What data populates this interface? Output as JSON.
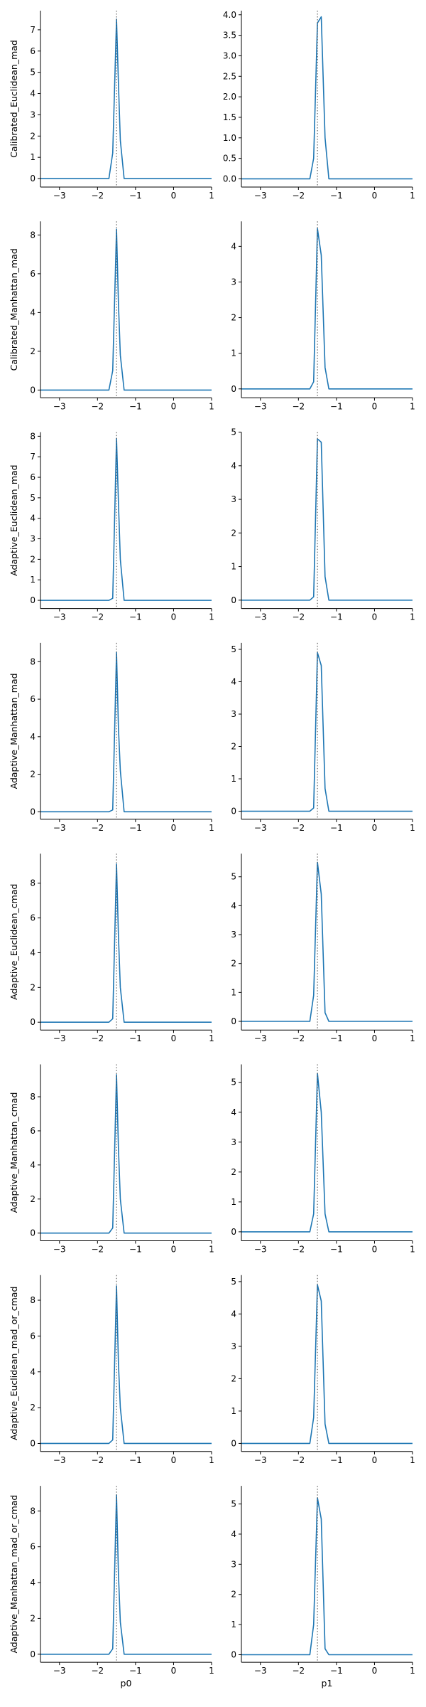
{
  "figure": {
    "line_color": "#1f77b4",
    "reference_line_color": "#555555",
    "reference_x": -1.5,
    "xlim": [
      -3.5,
      1.0
    ],
    "x_ticks": [
      -3,
      -2,
      -1,
      0,
      1
    ],
    "x_tick_labels": [
      "−3",
      "−2",
      "−1",
      "0",
      "1"
    ],
    "column_xlabels": [
      "p0",
      "p1"
    ]
  },
  "chart_data": [
    {
      "type": "line",
      "ylabel": "Calibrated_Euclidean_mad",
      "xlabel": "",
      "ylim": [
        -0.4,
        7.9
      ],
      "y_ticks": [
        0,
        1,
        2,
        3,
        4,
        5,
        6,
        7
      ],
      "y_tick_labels": [
        "0",
        "1",
        "2",
        "3",
        "4",
        "5",
        "6",
        "7"
      ],
      "x": [
        -3.5,
        -1.7,
        -1.6,
        -1.5,
        -1.45,
        -1.4,
        -1.3,
        1.0
      ],
      "values": [
        0,
        0,
        1.2,
        7.5,
        4.5,
        1.8,
        0,
        0
      ]
    },
    {
      "type": "line",
      "ylabel": "",
      "xlabel": "",
      "ylim": [
        -0.2,
        4.1
      ],
      "y_ticks": [
        0,
        0.5,
        1,
        1.5,
        2,
        2.5,
        3,
        3.5,
        4
      ],
      "y_tick_labels": [
        "0.0",
        "0.5",
        "1.0",
        "1.5",
        "2.0",
        "2.5",
        "3.0",
        "3.5",
        "4.0"
      ],
      "x": [
        -3.5,
        -1.7,
        -1.6,
        -1.5,
        -1.4,
        -1.3,
        -1.2,
        1.0
      ],
      "values": [
        0,
        0,
        0.5,
        3.8,
        3.95,
        1.0,
        0,
        0
      ]
    },
    {
      "type": "line",
      "ylabel": "Calibrated_Manhattan_mad",
      "xlabel": "",
      "ylim": [
        -0.4,
        8.7
      ],
      "y_ticks": [
        0,
        2,
        4,
        6,
        8
      ],
      "y_tick_labels": [
        "0",
        "2",
        "4",
        "6",
        "8"
      ],
      "x": [
        -3.5,
        -1.7,
        -1.6,
        -1.5,
        -1.45,
        -1.4,
        -1.3,
        1.0
      ],
      "values": [
        0,
        0,
        1.0,
        8.3,
        4.5,
        1.8,
        0,
        0
      ]
    },
    {
      "type": "line",
      "ylabel": "",
      "xlabel": "",
      "ylim": [
        -0.25,
        4.7
      ],
      "y_ticks": [
        0,
        1,
        2,
        3,
        4
      ],
      "y_tick_labels": [
        "0",
        "1",
        "2",
        "3",
        "4"
      ],
      "x": [
        -3.5,
        -1.7,
        -1.6,
        -1.5,
        -1.4,
        -1.3,
        -1.2,
        1.0
      ],
      "values": [
        0,
        0,
        0.2,
        4.5,
        3.75,
        0.6,
        0,
        0
      ]
    },
    {
      "type": "line",
      "ylabel": "Adaptive_Euclidean_mad",
      "xlabel": "",
      "ylim": [
        -0.4,
        8.2
      ],
      "y_ticks": [
        0,
        1,
        2,
        3,
        4,
        5,
        6,
        7,
        8
      ],
      "y_tick_labels": [
        "0",
        "1",
        "2",
        "3",
        "4",
        "5",
        "6",
        "7",
        "8"
      ],
      "x": [
        -3.5,
        -1.7,
        -1.6,
        -1.5,
        -1.45,
        -1.4,
        -1.3,
        1.0
      ],
      "values": [
        0,
        0,
        0.1,
        7.9,
        4.8,
        2.0,
        0,
        0
      ]
    },
    {
      "type": "line",
      "ylabel": "",
      "xlabel": "",
      "ylim": [
        -0.25,
        5.0
      ],
      "y_ticks": [
        0,
        1,
        2,
        3,
        4,
        5
      ],
      "y_tick_labels": [
        "0",
        "1",
        "2",
        "3",
        "4",
        "5"
      ],
      "x": [
        -3.5,
        -1.7,
        -1.6,
        -1.5,
        -1.4,
        -1.3,
        -1.2,
        1.0
      ],
      "values": [
        0,
        0,
        0.1,
        4.8,
        4.7,
        0.7,
        0,
        0
      ]
    },
    {
      "type": "line",
      "ylabel": "Adaptive_Manhattan_mad",
      "xlabel": "",
      "ylim": [
        -0.4,
        9.0
      ],
      "y_ticks": [
        0,
        2,
        4,
        6,
        8
      ],
      "y_tick_labels": [
        "0",
        "2",
        "4",
        "6",
        "8"
      ],
      "x": [
        -3.5,
        -1.7,
        -1.6,
        -1.5,
        -1.45,
        -1.4,
        -1.3,
        1.0
      ],
      "values": [
        0,
        0,
        0.1,
        8.5,
        4.5,
        2.2,
        0,
        0
      ]
    },
    {
      "type": "line",
      "ylabel": "",
      "xlabel": "",
      "ylim": [
        -0.25,
        5.2
      ],
      "y_ticks": [
        0,
        1,
        2,
        3,
        4,
        5
      ],
      "y_tick_labels": [
        "0",
        "1",
        "2",
        "3",
        "4",
        "5"
      ],
      "x": [
        -3.5,
        -1.7,
        -1.6,
        -1.5,
        -1.4,
        -1.3,
        -1.2,
        1.0
      ],
      "values": [
        0,
        0,
        0.1,
        4.9,
        4.5,
        0.7,
        0,
        0
      ]
    },
    {
      "type": "line",
      "ylabel": "Adaptive_Euclidean_cmad",
      "xlabel": "",
      "ylim": [
        -0.45,
        9.7
      ],
      "y_ticks": [
        0,
        2,
        4,
        6,
        8
      ],
      "y_tick_labels": [
        "0",
        "2",
        "4",
        "6",
        "8"
      ],
      "x": [
        -3.5,
        -1.7,
        -1.6,
        -1.5,
        -1.45,
        -1.4,
        -1.3,
        1.0
      ],
      "values": [
        0,
        0,
        0.2,
        9.1,
        5.0,
        2.0,
        0,
        0
      ]
    },
    {
      "type": "line",
      "ylabel": "",
      "xlabel": "",
      "ylim": [
        -0.3,
        5.8
      ],
      "y_ticks": [
        0,
        1,
        2,
        3,
        4,
        5
      ],
      "y_tick_labels": [
        "0",
        "1",
        "2",
        "3",
        "4",
        "5"
      ],
      "x": [
        -3.5,
        -1.7,
        -1.6,
        -1.5,
        -1.4,
        -1.3,
        -1.2,
        1.0
      ],
      "values": [
        0,
        0,
        0.9,
        5.5,
        4.4,
        0.3,
        0,
        0
      ]
    },
    {
      "type": "line",
      "ylabel": "Adaptive_Manhattan_cmad",
      "xlabel": "",
      "ylim": [
        -0.45,
        9.9
      ],
      "y_ticks": [
        0,
        2,
        4,
        6,
        8
      ],
      "y_tick_labels": [
        "0",
        "2",
        "4",
        "6",
        "8"
      ],
      "x": [
        -3.5,
        -1.7,
        -1.6,
        -1.5,
        -1.45,
        -1.4,
        -1.3,
        1.0
      ],
      "values": [
        0,
        0,
        0.3,
        9.3,
        5.0,
        2.0,
        0,
        0
      ]
    },
    {
      "type": "line",
      "ylabel": "",
      "xlabel": "",
      "ylim": [
        -0.3,
        5.6
      ],
      "y_ticks": [
        0,
        1,
        2,
        3,
        4,
        5
      ],
      "y_tick_labels": [
        "0",
        "1",
        "2",
        "3",
        "4",
        "5"
      ],
      "x": [
        -3.5,
        -1.7,
        -1.6,
        -1.5,
        -1.4,
        -1.3,
        -1.2,
        1.0
      ],
      "values": [
        0,
        0,
        0.6,
        5.3,
        4.0,
        0.6,
        0,
        0
      ]
    },
    {
      "type": "line",
      "ylabel": "Adaptive_Euclidean_mad_or_cmad",
      "xlabel": "",
      "ylim": [
        -0.45,
        9.4
      ],
      "y_ticks": [
        0,
        2,
        4,
        6,
        8
      ],
      "y_tick_labels": [
        "0",
        "2",
        "4",
        "6",
        "8"
      ],
      "x": [
        -3.5,
        -1.7,
        -1.6,
        -1.5,
        -1.45,
        -1.4,
        -1.3,
        1.0
      ],
      "values": [
        0,
        0,
        0.2,
        8.8,
        4.5,
        2.0,
        0,
        0
      ]
    },
    {
      "type": "line",
      "ylabel": "",
      "xlabel": "",
      "ylim": [
        -0.25,
        5.2
      ],
      "y_ticks": [
        0,
        1,
        2,
        3,
        4,
        5
      ],
      "y_tick_labels": [
        "0",
        "1",
        "2",
        "3",
        "4",
        "5"
      ],
      "x": [
        -3.5,
        -1.7,
        -1.6,
        -1.5,
        -1.4,
        -1.3,
        -1.2,
        1.0
      ],
      "values": [
        0,
        0,
        0.8,
        4.9,
        4.4,
        0.6,
        0,
        0
      ]
    },
    {
      "type": "line",
      "ylabel": "Adaptive_Manhattan_mad_or_cmad",
      "xlabel": "p0",
      "ylim": [
        -0.45,
        9.4
      ],
      "y_ticks": [
        0,
        2,
        4,
        6,
        8
      ],
      "y_tick_labels": [
        "0",
        "2",
        "4",
        "6",
        "8"
      ],
      "x": [
        -3.5,
        -1.7,
        -1.6,
        -1.5,
        -1.45,
        -1.4,
        -1.3,
        1.0
      ],
      "values": [
        0,
        0,
        0.3,
        8.9,
        4.5,
        1.8,
        0,
        0
      ]
    },
    {
      "type": "line",
      "ylabel": "",
      "xlabel": "p1",
      "ylim": [
        -0.25,
        5.6
      ],
      "y_ticks": [
        0,
        1,
        2,
        3,
        4,
        5
      ],
      "y_tick_labels": [
        "0",
        "1",
        "2",
        "3",
        "4",
        "5"
      ],
      "x": [
        -3.5,
        -1.7,
        -1.6,
        -1.5,
        -1.4,
        -1.3,
        -1.2,
        1.0
      ],
      "values": [
        0,
        0,
        1.0,
        5.2,
        4.5,
        0.2,
        0,
        0
      ]
    }
  ]
}
